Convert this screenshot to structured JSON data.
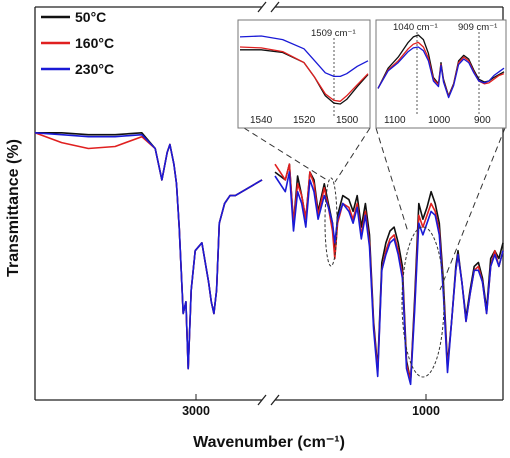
{
  "chart_data": {
    "type": "line",
    "xlabel": "Wavenumber (cm⁻¹)",
    "ylabel": "Transmittance (%)",
    "x_axis_reversed": true,
    "x_axis_break": "broken axis between 2300 and 1800 cm⁻¹",
    "x_ticks": [
      "3000",
      "1000"
    ],
    "legend_position": "top-left",
    "colors": {
      "50°C": "#111111",
      "160°C": "#e02020",
      "230°C": "#1a1ad6"
    },
    "series": [
      {
        "name": "50°C",
        "x": [
          4000,
          3800,
          3600,
          3400,
          3200,
          3100,
          3050,
          3010,
          2990,
          2960,
          2940,
          2920,
          2890,
          2870,
          2853,
          2830,
          2800,
          2750,
          2700,
          2680,
          2660,
          2640,
          2620,
          2580,
          2540,
          2500,
          2300,
          1800,
          1750,
          1730,
          1710,
          1690,
          1670,
          1650,
          1630,
          1610,
          1590,
          1560,
          1540,
          1520,
          1509,
          1495,
          1470,
          1440,
          1420,
          1400,
          1380,
          1360,
          1340,
          1320,
          1300,
          1280,
          1260,
          1240,
          1220,
          1200,
          1180,
          1160,
          1140,
          1120,
          1100,
          1080,
          1060,
          1040,
          1020,
          1000,
          980,
          960,
          940,
          920,
          909,
          890,
          870,
          850,
          830,
          810,
          790,
          770,
          750,
          730,
          710,
          690
        ],
        "y": [
          68,
          68,
          67.5,
          67.5,
          68,
          64,
          56,
          63,
          65,
          60,
          55,
          44,
          22,
          25,
          8,
          28,
          38,
          40,
          30,
          25,
          22,
          28,
          45,
          50,
          52,
          52,
          56,
          58,
          56,
          60,
          45,
          57,
          52,
          46,
          58,
          56,
          48,
          55,
          50,
          45,
          37,
          47,
          52,
          51,
          48,
          52,
          44,
          50,
          42,
          20,
          8,
          35,
          40,
          43,
          44,
          40,
          34,
          10,
          5,
          26,
          50,
          46,
          49,
          53,
          50,
          45,
          30,
          9,
          20,
          34,
          38,
          30,
          21,
          28,
          34,
          35,
          31,
          23,
          36,
          38,
          36,
          40
        ]
      },
      {
        "name": "160°C",
        "x": [
          4000,
          3800,
          3600,
          3400,
          3200,
          3100,
          3050,
          3010,
          2990,
          2960,
          2940,
          2920,
          2890,
          2870,
          2853,
          2830,
          2800,
          2750,
          2700,
          2680,
          2660,
          2640,
          2620,
          2580,
          2540,
          2500,
          2300,
          1800,
          1750,
          1730,
          1710,
          1690,
          1670,
          1650,
          1630,
          1610,
          1590,
          1560,
          1540,
          1520,
          1509,
          1495,
          1470,
          1440,
          1420,
          1400,
          1380,
          1360,
          1340,
          1320,
          1300,
          1280,
          1260,
          1240,
          1220,
          1200,
          1180,
          1160,
          1140,
          1120,
          1100,
          1080,
          1060,
          1040,
          1020,
          1000,
          980,
          960,
          940,
          920,
          909,
          890,
          870,
          850,
          830,
          810,
          790,
          770,
          750,
          730,
          710,
          690
        ],
        "y": [
          68,
          65.5,
          64,
          64.5,
          67,
          64,
          56,
          63,
          65,
          60,
          55,
          44,
          22,
          25,
          8,
          28,
          38,
          40,
          30,
          25,
          22,
          28,
          45,
          50,
          52,
          52,
          56,
          60,
          56,
          60,
          45,
          55,
          52,
          46,
          58,
          55,
          47,
          54,
          49,
          43,
          36,
          45,
          50,
          49,
          46,
          50,
          42,
          48,
          40,
          19,
          7,
          33,
          38,
          41,
          42,
          38,
          32,
          9,
          5,
          24,
          47,
          44,
          47,
          50,
          48,
          43,
          28,
          8,
          20,
          33,
          37,
          30,
          20,
          27,
          33,
          34,
          30,
          22,
          34,
          38,
          34,
          38
        ]
      },
      {
        "name": "230°C",
        "x": [
          4000,
          3800,
          3600,
          3400,
          3200,
          3100,
          3050,
          3010,
          2990,
          2960,
          2940,
          2920,
          2890,
          2870,
          2853,
          2830,
          2800,
          2750,
          2700,
          2680,
          2660,
          2640,
          2620,
          2580,
          2540,
          2500,
          2300,
          1800,
          1750,
          1730,
          1710,
          1690,
          1670,
          1650,
          1630,
          1610,
          1590,
          1560,
          1540,
          1520,
          1509,
          1495,
          1470,
          1440,
          1420,
          1400,
          1380,
          1360,
          1340,
          1320,
          1300,
          1280,
          1260,
          1240,
          1220,
          1200,
          1180,
          1160,
          1140,
          1120,
          1100,
          1080,
          1060,
          1040,
          1020,
          1000,
          980,
          960,
          940,
          920,
          909,
          890,
          870,
          850,
          830,
          810,
          790,
          770,
          750,
          730,
          710,
          690
        ],
        "y": [
          68,
          67.5,
          67,
          67,
          67.5,
          64,
          56,
          63,
          65,
          60,
          55,
          44,
          22,
          25,
          8,
          28,
          38,
          40,
          30,
          25,
          22,
          28,
          45,
          50,
          52,
          52,
          56,
          57,
          53,
          58,
          43,
          53,
          50,
          44,
          56,
          53,
          46,
          52,
          49,
          45,
          40,
          46,
          50,
          48,
          45,
          49,
          41,
          47,
          39,
          18,
          6,
          33,
          37,
          40,
          41,
          37,
          31,
          8,
          4,
          23,
          45,
          42,
          45,
          48,
          47,
          42,
          27,
          7,
          20,
          33,
          37,
          30,
          20,
          27,
          33,
          33,
          30,
          22,
          34,
          37,
          34,
          38
        ]
      }
    ],
    "insets": [
      {
        "x_ticks": [
          "1540",
          "1520",
          "1500"
        ],
        "annotation": "1509 cm⁻¹",
        "x": [
          1555,
          1545,
          1535,
          1525,
          1520,
          1515,
          1511,
          1508,
          1505,
          1500,
          1495
        ],
        "series": [
          {
            "name": "50°C",
            "y": [
              72,
              72,
              69,
              58,
              42,
              22,
              14,
              13,
              18,
              32,
              45
            ]
          },
          {
            "name": "160°C",
            "y": [
              75,
              74,
              70,
              58,
              42,
              24,
              17,
              16,
              22,
              34,
              46
            ]
          },
          {
            "name": "230°C",
            "y": [
              86,
              87,
              83,
              73,
              60,
              47,
              43,
              43,
              46,
              54,
              60
            ]
          }
        ]
      },
      {
        "x_ticks": [
          "1100",
          "1000",
          "900"
        ],
        "annotations": [
          "1040 cm⁻¹",
          "909 cm⁻¹"
        ],
        "x": [
          1120,
          1100,
          1080,
          1060,
          1050,
          1040,
          1030,
          1020,
          1010,
          1000,
          995,
          990,
          980,
          970,
          960,
          950,
          940,
          930,
          920,
          909,
          900,
          890,
          880,
          870
        ],
        "series": [
          {
            "name": "50°C",
            "y": [
              30,
              52,
              64,
              80,
              86,
              88,
              83,
              68,
              42,
              35,
              58,
              40,
              22,
              35,
              60,
              66,
              62,
              50,
              40,
              37,
              38,
              42,
              45,
              48
            ]
          },
          {
            "name": "160°C",
            "y": [
              30,
              50,
              60,
              73,
              78,
              80,
              75,
              63,
              40,
              34,
              56,
              38,
              21,
              34,
              58,
              64,
              60,
              48,
              38,
              35,
              36,
              40,
              44,
              46
            ]
          },
          {
            "name": "230°C",
            "y": [
              30,
              49,
              58,
              70,
              74,
              75,
              71,
              60,
              38,
              32,
              55,
              37,
              20,
              33,
              56,
              62,
              58,
              47,
              38,
              36,
              38,
              44,
              48,
              52
            ]
          }
        ]
      }
    ]
  }
}
